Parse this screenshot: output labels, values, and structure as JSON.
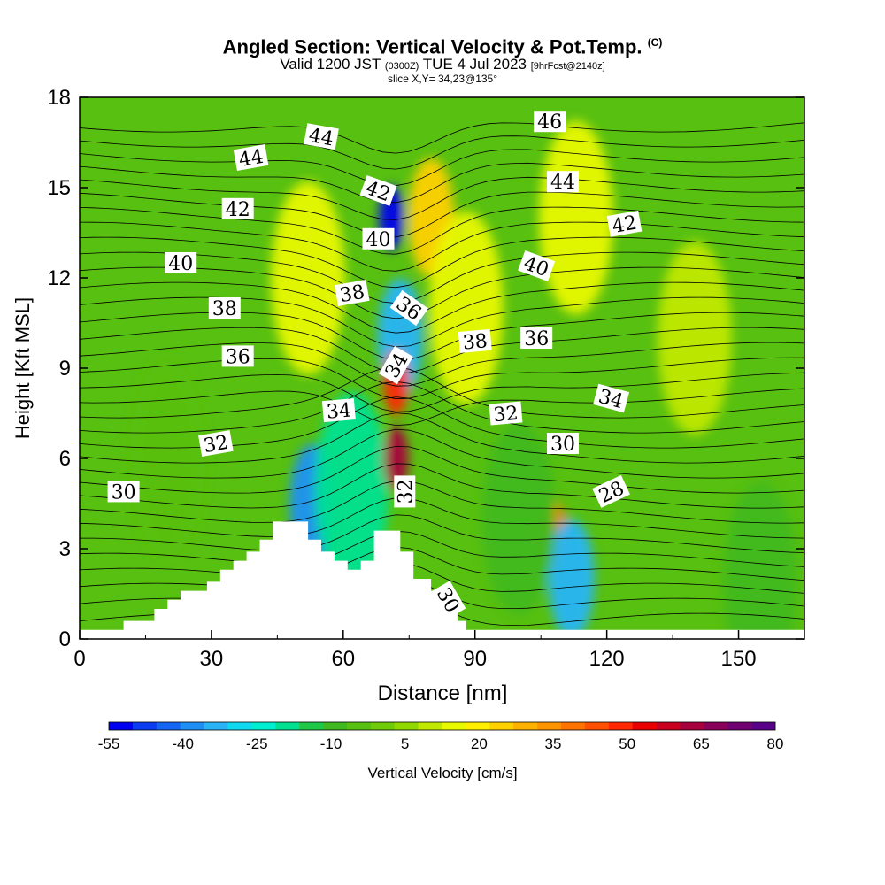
{
  "title": {
    "main": "Angled Section: Vertical Velocity & Pot.Temp.",
    "copyright": "(C)",
    "valid_prefix": "Valid 1200 JST",
    "valid_utc": "(0300Z)",
    "valid_date": "TUE 4 Jul 2023",
    "forecast": "[9hrFcst@2140z]",
    "slice": "slice X,Y= 34,23@135°"
  },
  "chart_data": {
    "type": "heatmap",
    "xlabel": "Distance [nm]",
    "ylabel": "Height [Kft MSL]",
    "xlim": [
      0,
      165
    ],
    "ylim": [
      0,
      18
    ],
    "x_ticks": [
      0,
      30,
      60,
      90,
      120,
      150
    ],
    "y_ticks": [
      0,
      3,
      6,
      9,
      12,
      15,
      18
    ],
    "grid": false,
    "colorbar": {
      "title": "Vertical Velocity [cm/s]",
      "placement": "bottom",
      "tick_labels": [
        -55,
        -40,
        -25,
        -10,
        5,
        20,
        35,
        50,
        65,
        80
      ],
      "levels": [
        -55,
        -50,
        -45,
        -40,
        -35,
        -30,
        -25,
        -20,
        -15,
        -10,
        -5,
        0,
        5,
        10,
        15,
        20,
        25,
        30,
        35,
        40,
        45,
        50,
        55,
        60,
        65,
        70,
        75,
        80
      ],
      "colors": [
        "#0000ee",
        "#0b3cf0",
        "#1466f2",
        "#1e90f5",
        "#28b4f7",
        "#10d8f0",
        "#00eed0",
        "#00e090",
        "#20c848",
        "#40b820",
        "#58c010",
        "#70cc08",
        "#90d800",
        "#c0e800",
        "#e8f800",
        "#ffee00",
        "#ffd000",
        "#ffb000",
        "#ff9400",
        "#ff7400",
        "#ff5000",
        "#ff2800",
        "#e80000",
        "#c80020",
        "#a8003c",
        "#880058",
        "#700070",
        "#580088"
      ]
    },
    "vertical_velocity_features": [
      {
        "x": 71,
        "y": 14,
        "value": -50
      },
      {
        "x": 73,
        "y": 10,
        "value": -30
      },
      {
        "x": 53,
        "y": 4.5,
        "value": -35
      },
      {
        "x": 62,
        "y": 5,
        "value": -15
      },
      {
        "x": 72,
        "y": 6,
        "value": 70
      },
      {
        "x": 72,
        "y": 8.5,
        "value": 55
      },
      {
        "x": 80,
        "y": 14,
        "value": 30
      },
      {
        "x": 88,
        "y": 11,
        "value": 20
      },
      {
        "x": 52,
        "y": 12,
        "value": 20
      },
      {
        "x": 108,
        "y": 3.5,
        "value": 45
      },
      {
        "x": 112,
        "y": 2,
        "value": -30
      },
      {
        "x": 113,
        "y": 14,
        "value": 20
      },
      {
        "x": 140,
        "y": 10,
        "value": 12
      },
      {
        "x": 100,
        "y": 4,
        "value": -8
      },
      {
        "x": 20,
        "y": 6,
        "value": 0
      },
      {
        "x": 155,
        "y": 2,
        "value": -5
      }
    ],
    "terrain": [
      [
        0,
        0.3
      ],
      [
        10,
        0.3
      ],
      [
        10,
        0.6
      ],
      [
        17,
        0.6
      ],
      [
        17,
        1.0
      ],
      [
        20,
        1.0
      ],
      [
        20,
        1.3
      ],
      [
        23,
        1.3
      ],
      [
        23,
        1.6
      ],
      [
        29,
        1.6
      ],
      [
        29,
        1.9
      ],
      [
        32,
        1.9
      ],
      [
        32,
        2.3
      ],
      [
        35,
        2.3
      ],
      [
        35,
        2.6
      ],
      [
        38,
        2.6
      ],
      [
        38,
        2.9
      ],
      [
        41,
        2.9
      ],
      [
        41,
        3.3
      ],
      [
        44,
        3.3
      ],
      [
        44,
        3.9
      ],
      [
        52,
        3.9
      ],
      [
        52,
        3.3
      ],
      [
        55,
        3.3
      ],
      [
        55,
        2.9
      ],
      [
        58,
        2.9
      ],
      [
        58,
        2.6
      ],
      [
        61,
        2.6
      ],
      [
        61,
        2.3
      ],
      [
        64,
        2.3
      ],
      [
        64,
        2.6
      ],
      [
        67,
        2.6
      ],
      [
        67,
        3.6
      ],
      [
        73,
        3.6
      ],
      [
        73,
        2.9
      ],
      [
        76,
        2.9
      ],
      [
        76,
        2.0
      ],
      [
        80,
        2.0
      ],
      [
        80,
        1.6
      ],
      [
        83,
        1.6
      ],
      [
        83,
        1.0
      ],
      [
        86,
        1.0
      ],
      [
        86,
        0.6
      ],
      [
        88,
        0.6
      ],
      [
        88,
        0.3
      ],
      [
        165,
        0.3
      ]
    ],
    "theta_labels": [
      {
        "text": "30",
        "x": 10,
        "y": 4.9,
        "rot": 0
      },
      {
        "text": "32",
        "x": 31,
        "y": 6.5,
        "rot": -10
      },
      {
        "text": "34",
        "x": 59,
        "y": 7.6,
        "rot": -5
      },
      {
        "text": "36",
        "x": 36,
        "y": 9.4,
        "rot": 0
      },
      {
        "text": "38",
        "x": 33,
        "y": 11.0,
        "rot": 0
      },
      {
        "text": "40",
        "x": 23,
        "y": 12.5,
        "rot": 0
      },
      {
        "text": "42",
        "x": 36,
        "y": 14.3,
        "rot": 0
      },
      {
        "text": "44",
        "x": 39,
        "y": 16.0,
        "rot": -10
      },
      {
        "text": "44",
        "x": 55,
        "y": 16.7,
        "rot": 10
      },
      {
        "text": "42",
        "x": 68,
        "y": 14.9,
        "rot": 20
      },
      {
        "text": "40",
        "x": 68,
        "y": 13.3,
        "rot": 0
      },
      {
        "text": "38",
        "x": 62,
        "y": 11.5,
        "rot": -10
      },
      {
        "text": "36",
        "x": 75,
        "y": 11.0,
        "rot": 35
      },
      {
        "text": "34",
        "x": 72,
        "y": 9.1,
        "rot": -60
      },
      {
        "text": "32",
        "x": 74,
        "y": 4.9,
        "rot": -90
      },
      {
        "text": "30",
        "x": 84,
        "y": 1.3,
        "rot": 60
      },
      {
        "text": "38",
        "x": 90,
        "y": 9.9,
        "rot": -5
      },
      {
        "text": "36",
        "x": 104,
        "y": 10.0,
        "rot": 0
      },
      {
        "text": "32",
        "x": 97,
        "y": 7.5,
        "rot": -5
      },
      {
        "text": "40",
        "x": 104,
        "y": 12.4,
        "rot": 20
      },
      {
        "text": "46",
        "x": 107,
        "y": 17.2,
        "rot": 0
      },
      {
        "text": "44",
        "x": 110,
        "y": 15.2,
        "rot": 0
      },
      {
        "text": "42",
        "x": 124,
        "y": 13.8,
        "rot": -10
      },
      {
        "text": "34",
        "x": 121,
        "y": 8.0,
        "rot": 15
      },
      {
        "text": "30",
        "x": 110,
        "y": 6.5,
        "rot": 0
      },
      {
        "text": "28",
        "x": 121,
        "y": 4.9,
        "rot": -25
      }
    ]
  }
}
